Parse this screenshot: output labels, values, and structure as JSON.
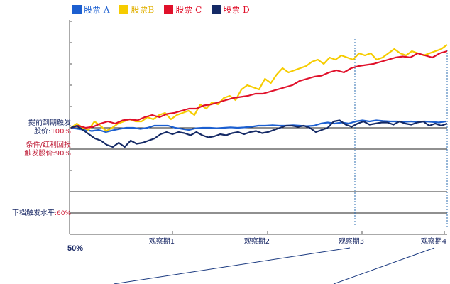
{
  "legend": [
    {
      "label": "股票 A",
      "color": "#1c5fd0"
    },
    {
      "label": "股票B",
      "color": "#f6cc00"
    },
    {
      "label": "股票 C",
      "color": "#e0102a"
    },
    {
      "label": "股票 D",
      "color": "#152a66"
    }
  ],
  "levels": {
    "level100": {
      "line1": "提前到期触发",
      "line2a": "股价:",
      "line2b": "100%"
    },
    "level90": {
      "line1": "条件/红利回报",
      "line2": "触发股价:90%"
    },
    "level60": {
      "text": "下档触发水平",
      "suffix": ":60%"
    }
  },
  "axis_start_label": "50%",
  "chart_data": {
    "type": "line",
    "x_tick_labels": [
      "观察期1",
      "观察期2",
      "观察期3",
      "观察期4"
    ],
    "reference_levels_percent": [
      100,
      90,
      60
    ],
    "series": [
      {
        "name": "股票 A",
        "color": "#1c5fd0",
        "values": [
          100,
          99.5,
          99,
          98.5,
          99,
          98,
          98.8,
          99.5,
          100,
          100,
          99.5,
          100,
          101,
          101,
          101,
          100,
          99.5,
          99,
          99.8,
          100,
          100,
          99.8,
          100,
          100.2,
          100,
          100.2,
          100.5,
          101,
          101,
          101.2,
          101,
          101,
          101.2,
          101,
          100.8,
          101,
          102,
          102.5,
          102,
          102.5,
          102,
          103,
          103.5,
          103,
          103.5,
          103.2,
          103,
          103,
          102.8,
          103,
          102.7,
          103,
          102.8,
          102.5,
          103
        ]
      },
      {
        "name": "股票B",
        "color": "#f6cc00",
        "values": [
          100,
          102,
          100,
          99,
          103,
          101,
          98.5,
          100,
          102,
          103,
          104,
          103,
          103,
          105,
          104,
          106,
          107,
          104,
          106,
          107,
          108,
          106,
          111,
          109,
          112,
          111,
          114,
          115,
          113,
          118,
          120,
          119,
          118,
          123,
          121,
          125,
          128,
          126,
          127,
          128,
          129,
          131,
          132,
          130,
          133,
          132,
          134,
          133,
          132,
          135,
          134,
          135,
          132,
          133,
          135,
          137,
          135,
          134,
          136,
          135,
          134,
          135,
          136,
          137,
          139
        ]
      },
      {
        "name": "股票 C",
        "color": "#e0102a",
        "values": [
          100,
          101,
          100,
          100.5,
          102,
          103,
          102,
          103.5,
          104,
          103.5,
          105,
          106,
          105,
          106.5,
          107,
          108,
          109,
          109,
          110.5,
          111,
          112,
          113,
          114,
          114.5,
          115,
          116,
          116,
          117,
          118,
          119,
          120,
          122,
          123,
          124,
          124.5,
          126,
          127,
          126,
          128,
          129,
          129.5,
          130,
          131,
          132,
          133,
          133.5,
          133,
          135,
          134,
          133,
          135,
          136
        ]
      },
      {
        "name": "股票 D",
        "color": "#152a66",
        "values": [
          100,
          101,
          99,
          97,
          95,
          94,
          92,
          91,
          93,
          91,
          94,
          92.5,
          93,
          94,
          95,
          97,
          98,
          97,
          98,
          97.5,
          96.5,
          98,
          96.5,
          95.5,
          96,
          97,
          96.5,
          97.5,
          98,
          97,
          98,
          98.5,
          97.5,
          98,
          99,
          100,
          101,
          101,
          100.5,
          101,
          100,
          98,
          99,
          100,
          103,
          103.5,
          101.5,
          100.5,
          102,
          103,
          101.5,
          102,
          102.5,
          102.5,
          101.5,
          103,
          102,
          101.5,
          102.5,
          103,
          101,
          102,
          101,
          102
        ]
      }
    ]
  }
}
